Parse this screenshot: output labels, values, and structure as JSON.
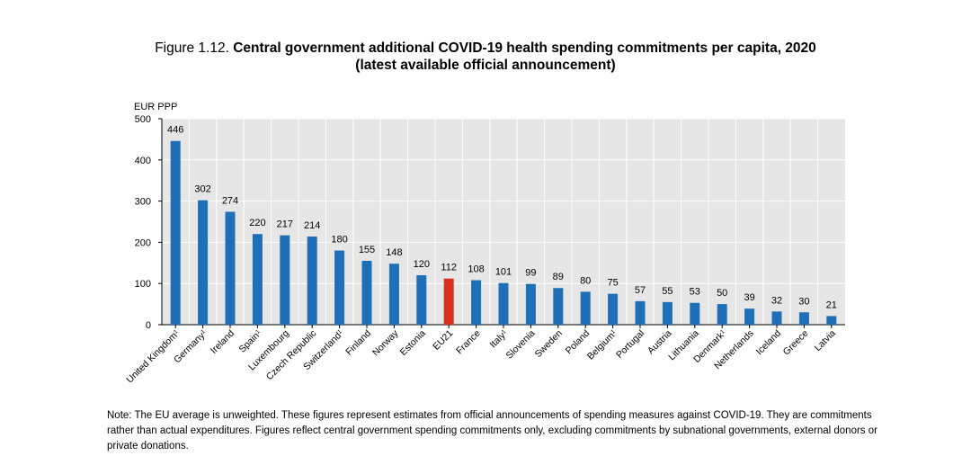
{
  "figure": {
    "label": "Figure 1.12.",
    "title_line1": "Central government additional COVID-19 health spending commitments per capita, 2020",
    "title_line2": "(latest available official announcement)"
  },
  "note": "Note: The EU average is unweighted. These figures represent estimates from official announcements of spending measures against COVID-19. They are commitments rather than actual expenditures. Figures reflect central government spending commitments only, excluding commitments by subnational governments, external donors or private donations.",
  "colors": {
    "bar": "#1f6fb8",
    "highlight": "#d6311f",
    "plot_bg": "#e6e6e6",
    "grid": "#ffffff"
  },
  "chart_data": {
    "type": "bar",
    "title": "Central government additional COVID-19 health spending commitments per capita, 2020",
    "ylabel": "EUR PPP",
    "xlabel": "",
    "ylim": [
      0,
      500
    ],
    "yticks": [
      0,
      100,
      200,
      300,
      400,
      500
    ],
    "grid": true,
    "highlight_category": "EU21",
    "categories": [
      {
        "name": "United Kingdom",
        "sup": "1"
      },
      {
        "name": "Germany",
        "sup": "1"
      },
      {
        "name": "Ireland",
        "sup": ""
      },
      {
        "name": "Spain",
        "sup": "1"
      },
      {
        "name": "Luxembourg",
        "sup": ""
      },
      {
        "name": "Czech Republic",
        "sup": ""
      },
      {
        "name": "Switzerland",
        "sup": "1"
      },
      {
        "name": "Finland",
        "sup": ""
      },
      {
        "name": "Norway",
        "sup": ""
      },
      {
        "name": "Estonia",
        "sup": ""
      },
      {
        "name": "EU21",
        "sup": ""
      },
      {
        "name": "France",
        "sup": ""
      },
      {
        "name": "Italy",
        "sup": "1"
      },
      {
        "name": "Slovenia",
        "sup": ""
      },
      {
        "name": "Sweden",
        "sup": ""
      },
      {
        "name": "Poland",
        "sup": ""
      },
      {
        "name": "Belgium",
        "sup": "1"
      },
      {
        "name": "Portugal",
        "sup": ""
      },
      {
        "name": "Austria",
        "sup": ""
      },
      {
        "name": "Lithuania",
        "sup": ""
      },
      {
        "name": "Denmark",
        "sup": "1"
      },
      {
        "name": "Netherlands",
        "sup": ""
      },
      {
        "name": "Iceland",
        "sup": ""
      },
      {
        "name": "Greece",
        "sup": ""
      },
      {
        "name": "Latvia",
        "sup": ""
      }
    ],
    "values": [
      446,
      302,
      274,
      220,
      217,
      214,
      180,
      155,
      148,
      120,
      112,
      108,
      101,
      99,
      89,
      80,
      75,
      57,
      55,
      53,
      50,
      39,
      32,
      30,
      21
    ]
  }
}
